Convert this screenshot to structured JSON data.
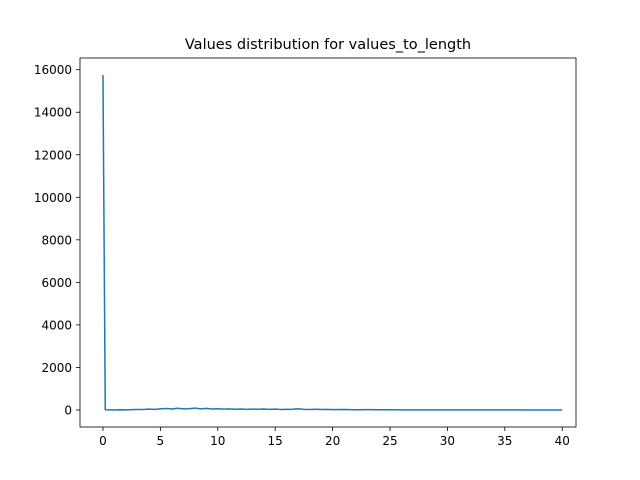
{
  "chart_data": {
    "type": "line",
    "title": "Values distribution for values_to_length",
    "xlabel": "",
    "ylabel": "",
    "xlim": [
      -2,
      41.2
    ],
    "ylim": [
      -800,
      16550
    ],
    "xticks": [
      0,
      5,
      10,
      15,
      20,
      25,
      30,
      35,
      40
    ],
    "yticks": [
      0,
      2000,
      4000,
      6000,
      8000,
      10000,
      12000,
      14000,
      16000
    ],
    "grid": false,
    "legend": "none",
    "colors": {
      "line": "#1f77b4"
    },
    "series": [
      {
        "x": [
          0.0,
          0.2,
          0.5,
          1.0,
          1.5,
          2.0,
          2.5,
          3.0,
          3.5,
          4.0,
          4.5,
          5.0,
          5.5,
          6.0,
          6.5,
          7.0,
          7.5,
          8.0,
          8.5,
          9.0,
          9.5,
          10.0,
          10.5,
          11.0,
          11.5,
          12.0,
          12.5,
          13.0,
          13.5,
          14.0,
          14.5,
          15.0,
          15.5,
          16.0,
          16.5,
          17.0,
          17.5,
          18.0,
          18.5,
          19.0,
          19.5,
          20.0,
          21.0,
          22.0,
          23.0,
          24.0,
          25.0,
          26.0,
          27.0,
          28.0,
          29.0,
          30.0,
          31.0,
          32.0,
          33.0,
          34.0,
          35.0,
          36.0,
          37.0,
          38.0,
          39.0,
          40.0
        ],
        "y": [
          15750,
          10,
          5,
          0,
          10,
          5,
          15,
          25,
          20,
          40,
          30,
          50,
          70,
          45,
          80,
          55,
          60,
          90,
          50,
          75,
          45,
          60,
          40,
          55,
          35,
          45,
          30,
          40,
          35,
          45,
          30,
          40,
          25,
          30,
          35,
          60,
          30,
          25,
          35,
          20,
          30,
          15,
          20,
          10,
          15,
          10,
          10,
          8,
          8,
          6,
          6,
          5,
          5,
          4,
          4,
          3,
          3,
          3,
          2,
          2,
          2,
          2
        ]
      }
    ]
  }
}
